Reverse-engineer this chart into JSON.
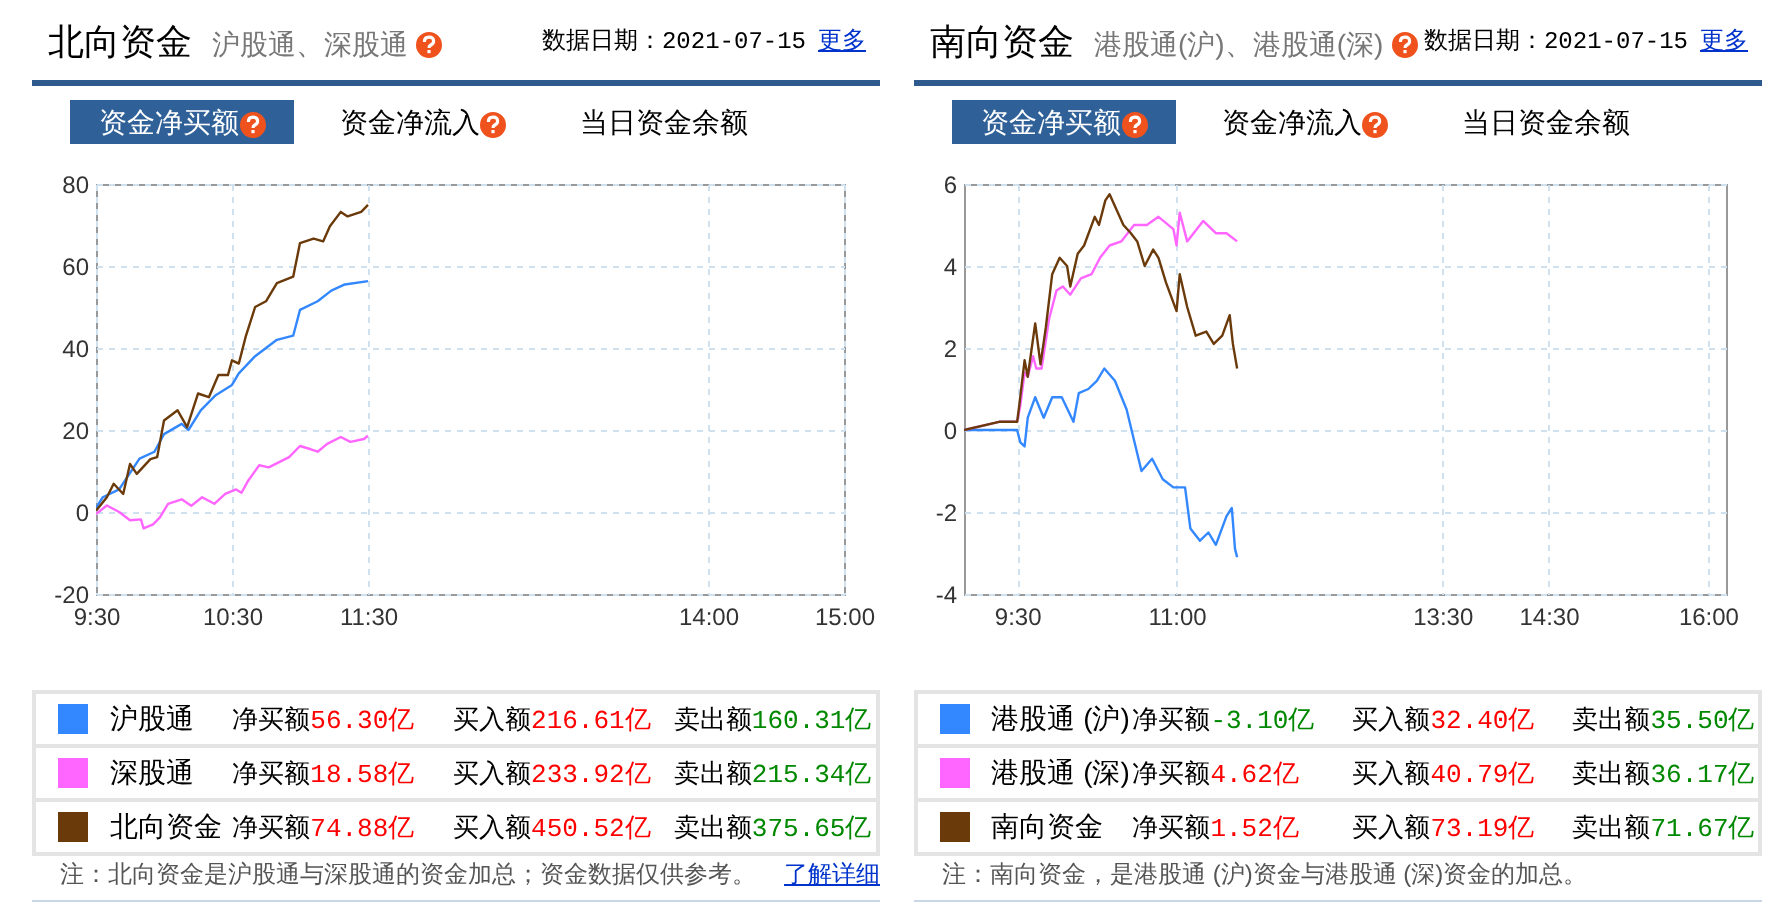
{
  "chart_data": [
    {
      "type": "line",
      "title": "北向资金",
      "subtitle": "沪股通、深股通",
      "annotations": [
        "数据日期：2021-07-15",
        "更多",
        "资金净买额",
        "资金净流入",
        "当日资金余额",
        "净买额56.30亿",
        "买入额216.61亿",
        "卖出额160.31亿",
        "净买额18.58亿",
        "买入额233.92亿",
        "卖出额215.34亿",
        "净买额74.88亿",
        "买入额450.52亿",
        "卖出额375.65亿",
        "注：北向资金是沪股通与深股通的资金加总；资金数据仅供参考。",
        "了解详细"
      ],
      "xlim": [
        9.5,
        15
      ],
      "xticks": [
        {
          "value": 9.5,
          "label": "9:30"
        },
        {
          "value": 10.5,
          "label": "10:30"
        },
        {
          "value": 11.5,
          "label": "11:30"
        },
        {
          "value": 14,
          "label": "14:00"
        },
        {
          "value": 15,
          "label": "15:00"
        }
      ],
      "ylim": [
        -20,
        80
      ],
      "yticks": [
        -20,
        0,
        20,
        40,
        60,
        80
      ],
      "grid": true,
      "legend": "bottom",
      "series": [
        {
          "name": "沪股通",
          "color": "#3388ff",
          "x": [
            9.5,
            9.55,
            9.67,
            9.82,
            9.93,
            10,
            10.13,
            10.18,
            10.27,
            10.38,
            10.5,
            10.55,
            10.67,
            10.83,
            10.95,
            11,
            11.13,
            11.23,
            11.33,
            11.5
          ],
          "values": [
            1,
            3.6,
            5.5,
            13,
            14.7,
            19,
            21.5,
            20,
            24.8,
            28.5,
            31,
            33.8,
            38,
            42,
            43,
            49.3,
            51.4,
            54,
            55.5,
            56.3
          ]
        },
        {
          "name": "深股通",
          "color": "#ff66ff",
          "x": [
            9.5,
            9.58,
            9.67,
            9.75,
            9.83,
            9.85,
            9.92,
            9.97,
            10.03,
            10.13,
            10.2,
            10.28,
            10.37,
            10.45,
            10.53,
            10.57,
            10.62,
            10.7,
            10.77,
            10.92,
            11,
            11.08,
            11.13,
            11.2,
            11.3,
            11.37,
            11.47,
            11.5
          ],
          "values": [
            -0.5,
            1.6,
            0,
            -2,
            -1.8,
            -4,
            -3,
            -1.3,
            2,
            3.1,
            1.5,
            3.6,
            2,
            4.4,
            5.5,
            4.7,
            7.7,
            11.4,
            10.9,
            13.4,
            16.1,
            15.3,
            14.7,
            16.6,
            18.3,
            17.1,
            17.8,
            18.6
          ]
        },
        {
          "name": "北向资金",
          "color": "#6b3a0a",
          "x": [
            9.5,
            9.58,
            9.63,
            9.7,
            9.75,
            9.8,
            9.9,
            9.95,
            10,
            10.1,
            10.17,
            10.25,
            10.33,
            10.4,
            10.47,
            10.5,
            10.55,
            10.6,
            10.67,
            10.75,
            10.83,
            10.95,
            11,
            11.1,
            11.17,
            11.22,
            11.3,
            11.35,
            11.45,
            11.5
          ],
          "values": [
            0.3,
            3.6,
            6.9,
            4.4,
            11.7,
            9.3,
            12.9,
            13.4,
            22.3,
            24.8,
            20.7,
            28.9,
            28,
            33.4,
            33.4,
            37,
            36.2,
            42.7,
            50,
            51.4,
            55.8,
            57.4,
            65.6,
            66.7,
            66,
            69.7,
            73.2,
            72.1,
            73.2,
            74.9
          ]
        }
      ]
    },
    {
      "type": "line",
      "title": "南向资金",
      "subtitle": "港股通(沪)、港股通(深)",
      "annotations": [
        "数据日期：2021-07-15",
        "更多",
        "资金净买额",
        "资金净流入",
        "当日资金余额",
        "净买额-3.10亿",
        "买入额32.40亿",
        "卖出额35.50亿",
        "净买额4.62亿",
        "买入额40.79亿",
        "卖出额36.17亿",
        "净买额1.52亿",
        "买入额73.19亿",
        "卖出额71.67亿",
        "注：南向资金，是港股通 (沪)资金与港股通 (深)资金的加总。"
      ],
      "xlim": [
        9,
        16.17
      ],
      "xticks": [
        {
          "value": 9.5,
          "label": "9:30"
        },
        {
          "value": 11,
          "label": "11:00"
        },
        {
          "value": 13.5,
          "label": "13:30"
        },
        {
          "value": 14.5,
          "label": "14:30"
        },
        {
          "value": 16,
          "label": "16:00"
        }
      ],
      "ylim": [
        -4,
        6
      ],
      "yticks": [
        -4,
        -2,
        0,
        2,
        4,
        6
      ],
      "grid": true,
      "legend": "bottom",
      "series": [
        {
          "name": "港股通 (沪)",
          "color": "#3388ff",
          "x": [
            9,
            9.5,
            9.53,
            9.57,
            9.6,
            9.67,
            9.75,
            9.83,
            9.92,
            10.03,
            10.08,
            10.17,
            10.25,
            10.32,
            10.42,
            10.53,
            10.67,
            10.77,
            10.87,
            10.97,
            11.08,
            11.13,
            11.22,
            11.3,
            11.37,
            11.47,
            11.52,
            11.55,
            11.57
          ],
          "values": [
            0,
            0,
            -0.3,
            -0.4,
            0.3,
            0.8,
            0.3,
            0.8,
            0.8,
            0.2,
            0.9,
            1,
            1.2,
            1.5,
            1.2,
            0.5,
            -1,
            -0.7,
            -1.2,
            -1.4,
            -1.4,
            -2.4,
            -2.7,
            -2.5,
            -2.8,
            -2.1,
            -1.9,
            -2.9,
            -3.1
          ]
        },
        {
          "name": "港股通 (深)",
          "color": "#ff66ff",
          "x": [
            9,
            9.33,
            9.5,
            9.53,
            9.57,
            9.6,
            9.65,
            9.68,
            9.73,
            9.8,
            9.87,
            9.93,
            10,
            10.1,
            10.2,
            10.28,
            10.37,
            10.48,
            10.6,
            10.72,
            10.83,
            10.97,
            11,
            11.03,
            11.1,
            11.25,
            11.37,
            11.47,
            11.57
          ],
          "values": [
            0,
            0.2,
            0.2,
            0.6,
            1.4,
            1.3,
            1.8,
            1.5,
            1.5,
            2.7,
            3.4,
            3.5,
            3.3,
            3.7,
            3.8,
            4.2,
            4.5,
            4.6,
            5,
            5,
            5.2,
            4.9,
            4.5,
            5.3,
            4.6,
            5.1,
            4.8,
            4.8,
            4.6
          ]
        },
        {
          "name": "南向资金",
          "color": "#6b3a0a",
          "x": [
            9,
            9.33,
            9.5,
            9.52,
            9.57,
            9.6,
            9.67,
            9.72,
            9.77,
            9.83,
            9.9,
            9.97,
            10,
            10.07,
            10.13,
            10.23,
            10.27,
            10.33,
            10.37,
            10.43,
            10.5,
            10.57,
            10.63,
            10.7,
            10.78,
            10.83,
            10.9,
            11,
            11.03,
            11.1,
            11.18,
            11.28,
            11.35,
            11.43,
            11.5,
            11.53,
            11.57
          ],
          "values": [
            0,
            0.2,
            0.2,
            0.6,
            1.7,
            1.3,
            2.6,
            1.6,
            2.5,
            3.8,
            4.2,
            4,
            3.5,
            4.3,
            4.5,
            5.2,
            5,
            5.6,
            5.75,
            5.4,
            5,
            4.8,
            4.6,
            4,
            4.4,
            4.2,
            3.6,
            2.9,
            3.8,
            3,
            2.3,
            2.4,
            2.1,
            2.3,
            2.8,
            2.1,
            1.5
          ]
        }
      ]
    }
  ]
}
